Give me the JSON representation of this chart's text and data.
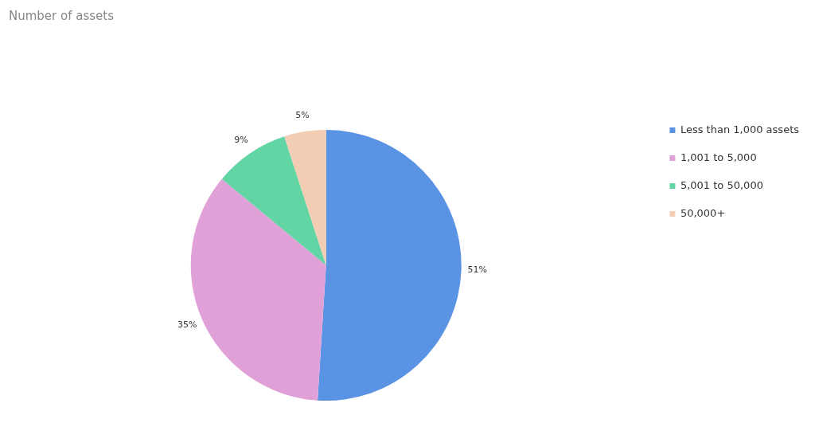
{
  "chart_data": {
    "type": "pie",
    "title": "Number of assets",
    "categories": [
      "Less than 1,000 assets",
      "1,001 to 5,000",
      "5,001 to 50,000",
      "50,000+"
    ],
    "values": [
      51,
      35,
      9,
      5
    ],
    "colors": [
      "#5b93e4",
      "#e0a0d8",
      "#63d4a4",
      "#f2cdb4"
    ],
    "value_labels": [
      "51%",
      "35%",
      "9%",
      "5%"
    ],
    "legend": "right"
  }
}
